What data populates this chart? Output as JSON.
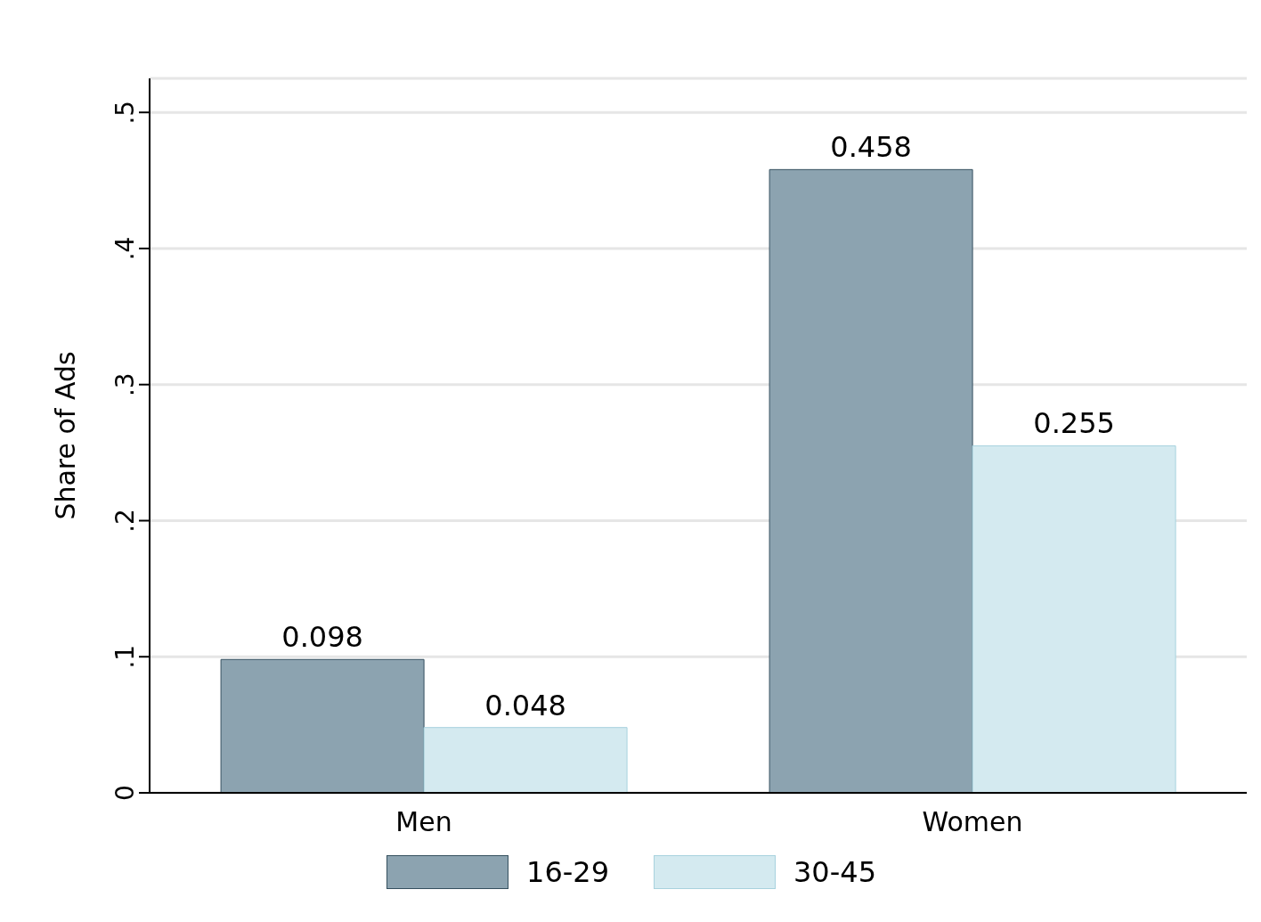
{
  "chart_data": {
    "type": "bar",
    "ylabel": "Share of Ads",
    "categories": [
      "Men",
      "Women"
    ],
    "series": [
      {
        "name": "16-29",
        "color": "#8ca3b0",
        "values": [
          0.098,
          0.458
        ]
      },
      {
        "name": "30-45",
        "color": "#d4eaf0",
        "values": [
          0.048,
          0.255
        ]
      }
    ],
    "ylim": [
      0,
      0.525
    ],
    "yticks": [
      {
        "value": 0,
        "label": "0"
      },
      {
        "value": 0.1,
        "label": ".1"
      },
      {
        "value": 0.2,
        "label": ".2"
      },
      {
        "value": 0.3,
        "label": ".3"
      },
      {
        "value": 0.4,
        "label": ".4"
      },
      {
        "value": 0.5,
        "label": ".5"
      }
    ],
    "grid": "y",
    "legend": "bottom",
    "data_labels": true
  }
}
